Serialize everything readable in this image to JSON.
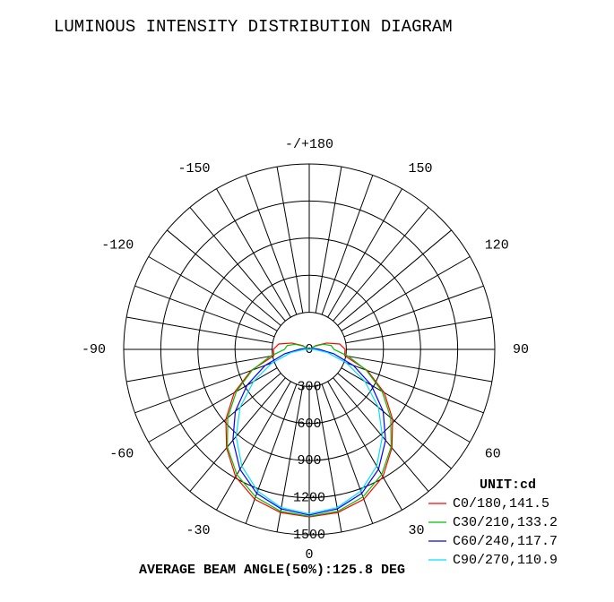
{
  "chart_data": {
    "type": "polar",
    "title": "LUMINOUS INTENSITY DISTRIBUTION DIAGRAM",
    "unit_label": "UNIT:cd",
    "annotation": "AVERAGE BEAM ANGLE(50%):125.8 DEG",
    "angles": [
      -180,
      -170,
      -160,
      -150,
      -140,
      -130,
      -120,
      -110,
      -100,
      -90,
      -80,
      -70,
      -60,
      -50,
      -40,
      -30,
      -20,
      -10,
      0,
      10,
      20,
      30,
      40,
      50,
      60,
      70,
      80,
      90,
      100,
      110,
      120,
      130,
      140,
      150,
      160,
      170,
      180
    ],
    "rlim": [
      0,
      1500
    ],
    "rticks": [
      0,
      300,
      600,
      900,
      1200,
      1500
    ],
    "thetaticks": [
      {
        "value": 180,
        "label": "-/+180"
      },
      150,
      120,
      90,
      60,
      30,
      0,
      -30,
      -60,
      -90,
      -120,
      -150
    ],
    "series": [
      {
        "name": "C0/180,141.5",
        "color": "#ff0000",
        "values": [
          0,
          0,
          0,
          0,
          0,
          0,
          60,
          150,
          250,
          290,
          290,
          500,
          700,
          880,
          1040,
          1190,
          1290,
          1340,
          1355,
          1340,
          1290,
          1190,
          1040,
          880,
          700,
          500,
          290,
          290,
          250,
          150,
          60,
          0,
          0,
          0,
          0,
          0,
          0
        ]
      },
      {
        "name": "C30/210,133.2",
        "color": "#00c000",
        "values": [
          0,
          0,
          0,
          0,
          0,
          0,
          50,
          120,
          180,
          200,
          320,
          490,
          680,
          860,
          1030,
          1170,
          1270,
          1330,
          1350,
          1330,
          1270,
          1170,
          1030,
          860,
          680,
          490,
          320,
          200,
          180,
          120,
          50,
          0,
          0,
          0,
          0,
          0,
          0
        ]
      },
      {
        "name": "C60/240,117.7",
        "color": "#0000ff",
        "values": [
          0,
          0,
          0,
          0,
          0,
          0,
          0,
          0,
          40,
          80,
          200,
          380,
          580,
          780,
          960,
          1120,
          1240,
          1310,
          1340,
          1310,
          1240,
          1120,
          960,
          780,
          580,
          380,
          200,
          80,
          40,
          0,
          0,
          0,
          0,
          0,
          0,
          0,
          0
        ]
      },
      {
        "name": "C90/270,110.9",
        "color": "#00e0ff",
        "values": [
          0,
          0,
          0,
          0,
          0,
          0,
          0,
          0,
          0,
          40,
          150,
          320,
          520,
          730,
          920,
          1090,
          1220,
          1300,
          1330,
          1300,
          1220,
          1090,
          920,
          730,
          520,
          320,
          150,
          40,
          0,
          0,
          0,
          0,
          0,
          0,
          0,
          0,
          0
        ]
      }
    ]
  }
}
